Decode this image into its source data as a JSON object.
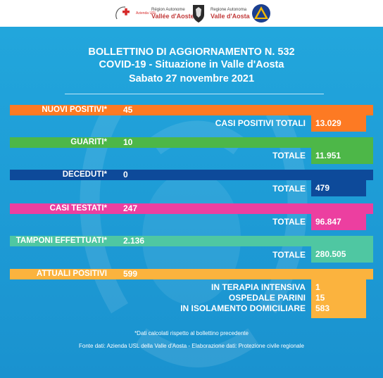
{
  "logos": {
    "usl": "Azienda USL",
    "region1_small": "Région Autonome",
    "region1_big": "Vallée d'Aoste",
    "region2_small": "Regione Autonoma",
    "region2_big": "Valle d'Aosta"
  },
  "header": {
    "line1": "BOLLETTINO DI AGGIORNAMENTO N. 532",
    "line2": "COVID-19 - Situazione in Valle d'Aosta",
    "line3": "Sabato 27 novembre 2021"
  },
  "rows": {
    "nuovi_positivi": {
      "label": "NUOVI POSITIVI*",
      "value": "45",
      "total_label": "CASI POSITIVI TOTALI",
      "total": "13.029"
    },
    "guariti": {
      "label": "GUARITI*",
      "value": "10",
      "total_label": "TOTALE",
      "total": "11.951"
    },
    "deceduti": {
      "label": "DECEDUTI*",
      "value": "0",
      "total_label": "TOTALE",
      "total": "479"
    },
    "casi_testati": {
      "label": "CASI TESTATI*",
      "value": "247",
      "total_label": "TOTALE",
      "total": "96.847"
    },
    "tamponi": {
      "label": "TAMPONI EFFETTUATI*",
      "value": "2.136",
      "total_label": "TOTALE",
      "total": "280.505"
    },
    "attuali_positivi": {
      "label": "ATTUALI POSITIVI",
      "value": "599",
      "breakdown": [
        {
          "label": "IN TERAPIA INTENSIVA",
          "value": "1"
        },
        {
          "label": "OSPEDALE PARINI",
          "value": "15"
        },
        {
          "label": "IN ISOLAMENTO DOMICILIARE",
          "value": "583"
        }
      ]
    }
  },
  "colors": {
    "background": "#1f9fd8",
    "orange": "#fd7a23",
    "green": "#4db748",
    "navy": "#0d4a9a",
    "magenta": "#ec3fa0",
    "teal": "#4fc7a2",
    "amber": "#fbb33e"
  },
  "footer": {
    "note": "*Dati calcolati rispetto al bollettino precedente",
    "source": "Fonte dati: Azienda USL della Valle d'Aosta - Elaborazione dati: Protezione civile regionale"
  }
}
